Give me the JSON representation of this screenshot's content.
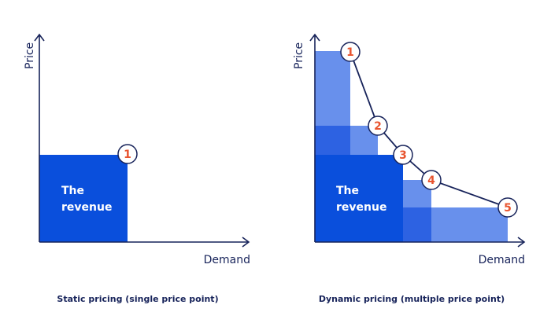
{
  "left": {
    "y_label": "Price",
    "x_label": "Demand",
    "revenue_line1": "The",
    "revenue_line2": "revenue",
    "points": [
      "1"
    ],
    "caption": "Static pricing (single price point)"
  },
  "right": {
    "y_label": "Price",
    "x_label": "Demand",
    "revenue_line1": "The",
    "revenue_line2": "revenue",
    "points": [
      "1",
      "2",
      "3",
      "4",
      "5"
    ],
    "caption": "Dynamic pricing (multiple price point)"
  },
  "colors": {
    "revenue": "#0a4fdc",
    "light": "#6890ec",
    "medium": "#2d62e2",
    "axis": "#17235a",
    "point_number": "#e8542f"
  }
}
